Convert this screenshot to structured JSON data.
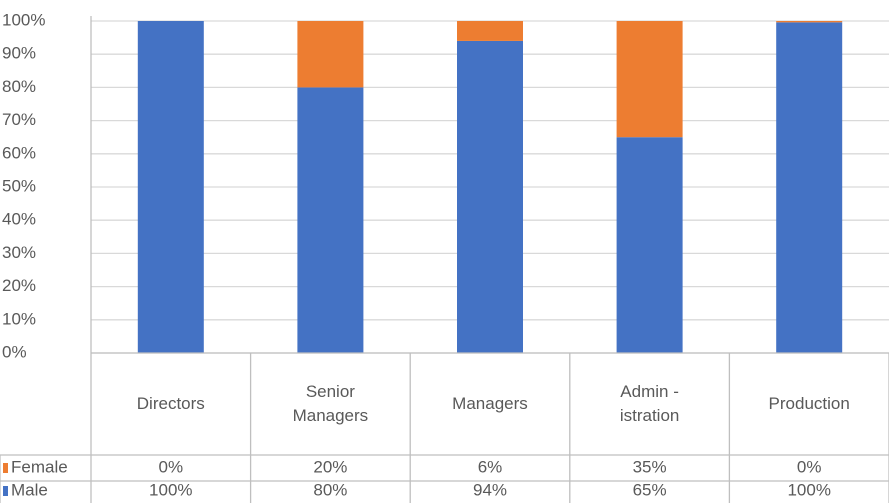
{
  "chart_data": {
    "type": "stacked_bar",
    "categories": [
      "Directors",
      "Senior\nManagers",
      "Managers",
      "Admin -\nistration",
      "Production"
    ],
    "series": [
      {
        "name": "Female",
        "color": "#ed7d31",
        "values": [
          0,
          20,
          6,
          35,
          0.4
        ],
        "value_labels": [
          "0%",
          "20%",
          "6%",
          "35%",
          "0%"
        ]
      },
      {
        "name": "Male",
        "color": "#4472c4",
        "values": [
          100,
          80,
          94,
          65,
          99.6
        ],
        "value_labels": [
          "100%",
          "80%",
          "94%",
          "65%",
          "100%"
        ]
      }
    ],
    "ylim": [
      0,
      100
    ],
    "yticks": [
      {
        "value": 0,
        "label": "0%"
      },
      {
        "value": 10,
        "label": "10%"
      },
      {
        "value": 20,
        "label": "20%"
      },
      {
        "value": 30,
        "label": "30%"
      },
      {
        "value": 40,
        "label": "40%"
      },
      {
        "value": 50,
        "label": "50%"
      },
      {
        "value": 60,
        "label": "60%"
      },
      {
        "value": 70,
        "label": "70%"
      },
      {
        "value": 80,
        "label": "80%"
      },
      {
        "value": 90,
        "label": "90%"
      },
      {
        "value": 100,
        "label": "100%"
      }
    ],
    "grid": true
  }
}
